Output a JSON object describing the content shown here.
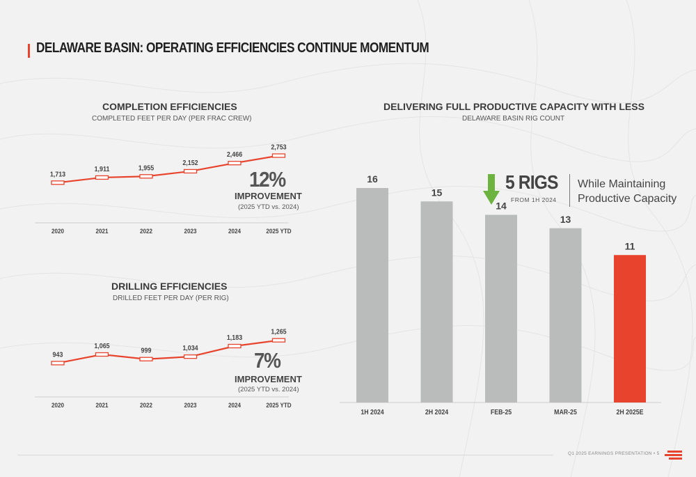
{
  "page": {
    "title": "DELAWARE BASIN: OPERATING EFFICIENCIES CONTINUE MOMENTUM",
    "footer": "Q1 2025 EARNINGS PRESENTATION  •  5"
  },
  "colors": {
    "accent": "#e8432c",
    "bar_gray": "#b9bcbb",
    "line": "#e8432c"
  },
  "completion": {
    "title": "COMPLETION EFFICIENCIES",
    "subtitle": "COMPLETED FEET PER DAY (PER FRAC CREW)",
    "pct": "12%",
    "improvement": "IMPROVEMENT",
    "note": "(2025 YTD vs. 2024)"
  },
  "drilling": {
    "title": "DRILLING EFFICIENCIES",
    "subtitle": "DRILLED FEET PER DAY (PER RIG)",
    "pct": "7%",
    "improvement": "IMPROVEMENT",
    "note": "(2025 YTD vs. 2024)"
  },
  "rigs": {
    "title": "DELIVERING FULL PRODUCTIVE CAPACITY WITH LESS",
    "subtitle": "DELAWARE BASIN RIG COUNT",
    "callout_value": "5 RIGS",
    "callout_sub": "FROM 1H 2024",
    "callout_text_line1": "While Maintaining",
    "callout_text_line2": "Productive Capacity",
    "arrow_icon": "down-arrow-icon"
  },
  "chart_data": [
    {
      "type": "line",
      "title": "COMPLETION EFFICIENCIES",
      "subtitle": "COMPLETED FEET PER DAY (PER FRAC CREW)",
      "categories": [
        "2020",
        "2021",
        "2022",
        "2023",
        "2024",
        "2025 YTD"
      ],
      "values": [
        1713,
        1911,
        1955,
        2152,
        2466,
        2753
      ],
      "labels": [
        "1,713",
        "1,911",
        "1,955",
        "2,152",
        "2,466",
        "2,753"
      ],
      "ylim": [
        1400,
        2900
      ],
      "grid": false
    },
    {
      "type": "line",
      "title": "DRILLING EFFICIENCIES",
      "subtitle": "DRILLED FEET PER DAY (PER RIG)",
      "categories": [
        "2020",
        "2021",
        "2022",
        "2023",
        "2024",
        "2025 YTD"
      ],
      "values": [
        943,
        1065,
        999,
        1034,
        1183,
        1265
      ],
      "labels": [
        "943",
        "1,065",
        "999",
        "1,034",
        "1,183",
        "1,265"
      ],
      "ylim": [
        800,
        1350
      ],
      "grid": false
    },
    {
      "type": "bar",
      "title": "DELIVERING FULL PRODUCTIVE CAPACITY WITH LESS",
      "subtitle": "DELAWARE BASIN RIG COUNT",
      "categories": [
        "1H 2024",
        "2H 2024",
        "FEB-25",
        "MAR-25",
        "2H 2025E"
      ],
      "values": [
        16,
        15,
        14,
        13,
        11
      ],
      "highlight": [
        false,
        false,
        false,
        false,
        true
      ],
      "ylim": [
        0,
        16
      ],
      "grid": false
    }
  ]
}
